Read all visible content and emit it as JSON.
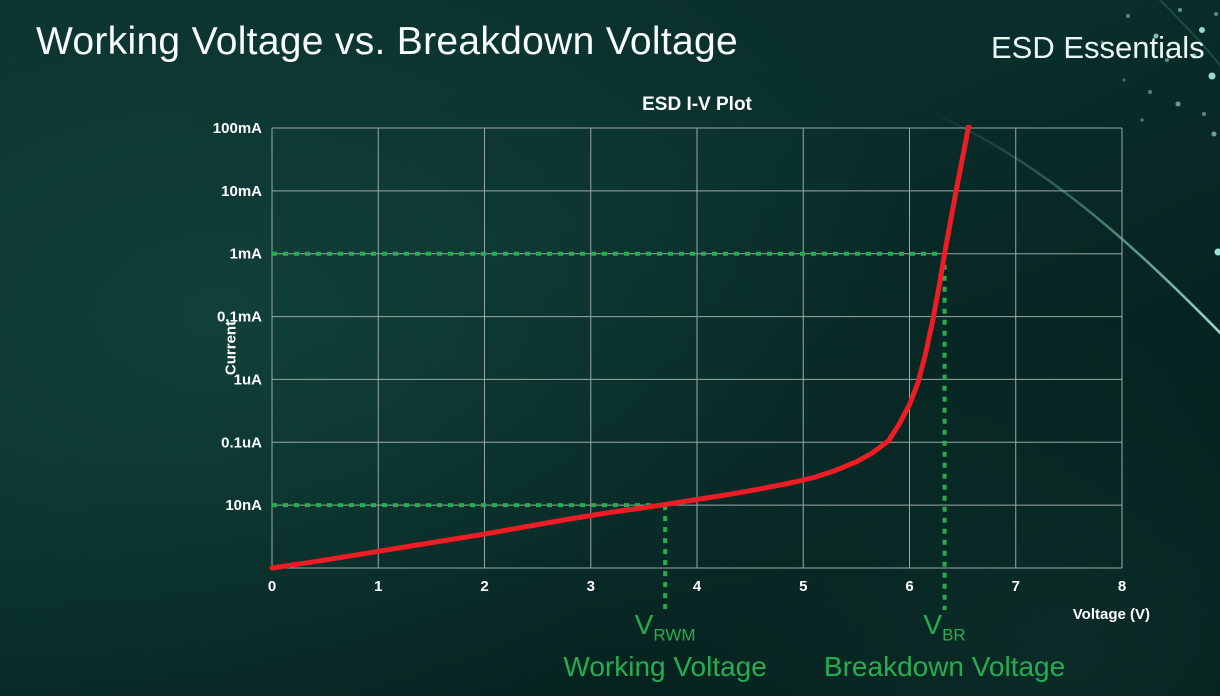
{
  "page": {
    "title": "Working Voltage vs. Breakdown Voltage",
    "brand": "ESD Essentials"
  },
  "chart_data": {
    "type": "line",
    "title": "ESD I-V Plot",
    "xlabel": "Voltage (V)",
    "ylabel": "Current",
    "x_range": [
      0,
      8
    ],
    "x_ticks": [
      0,
      1,
      2,
      3,
      4,
      5,
      6,
      7,
      8
    ],
    "y_scale": "log",
    "y_tick_labels": [
      "100mA",
      "10mA",
      "1mA",
      "0.1mA",
      "1uA",
      "0.1uA",
      "10nA"
    ],
    "y_rows": 7,
    "grid": true,
    "grid_color": "#9aa8a4",
    "annotation_color": "#25ae50",
    "legend": "none",
    "series": [
      {
        "name": "ESD device I-V curve",
        "color": "#ee1c25",
        "points_format": "[voltage_V, grid_rows_below_100mA_line]",
        "points": [
          [
            0,
            7.0
          ],
          [
            0.4,
            6.9
          ],
          [
            0.8,
            6.79
          ],
          [
            1.2,
            6.68
          ],
          [
            1.6,
            6.57
          ],
          [
            2.0,
            6.46
          ],
          [
            2.4,
            6.34
          ],
          [
            2.8,
            6.22
          ],
          [
            3.2,
            6.11
          ],
          [
            3.5,
            6.04
          ],
          [
            3.7,
            5.99
          ],
          [
            4.0,
            5.91
          ],
          [
            4.3,
            5.83
          ],
          [
            4.6,
            5.74
          ],
          [
            4.9,
            5.64
          ],
          [
            5.1,
            5.56
          ],
          [
            5.3,
            5.45
          ],
          [
            5.5,
            5.31
          ],
          [
            5.65,
            5.17
          ],
          [
            5.8,
            4.98
          ],
          [
            5.9,
            4.72
          ],
          [
            6.0,
            4.4
          ],
          [
            6.08,
            4.05
          ],
          [
            6.15,
            3.6
          ],
          [
            6.22,
            3.05
          ],
          [
            6.28,
            2.5
          ],
          [
            6.33,
            2.0
          ],
          [
            6.39,
            1.45
          ],
          [
            6.45,
            0.9
          ],
          [
            6.51,
            0.38
          ],
          [
            6.57,
            -0.15
          ]
        ]
      }
    ],
    "annotations": [
      {
        "symbol": "V",
        "subscript": "RWM",
        "caption": "Working Voltage",
        "x": 3.7,
        "row": 6,
        "crosses_current": "10nA"
      },
      {
        "symbol": "V",
        "subscript": "BR",
        "caption": "Breakdown Voltage",
        "x": 6.33,
        "row": 2,
        "crosses_current": "1mA"
      }
    ]
  }
}
